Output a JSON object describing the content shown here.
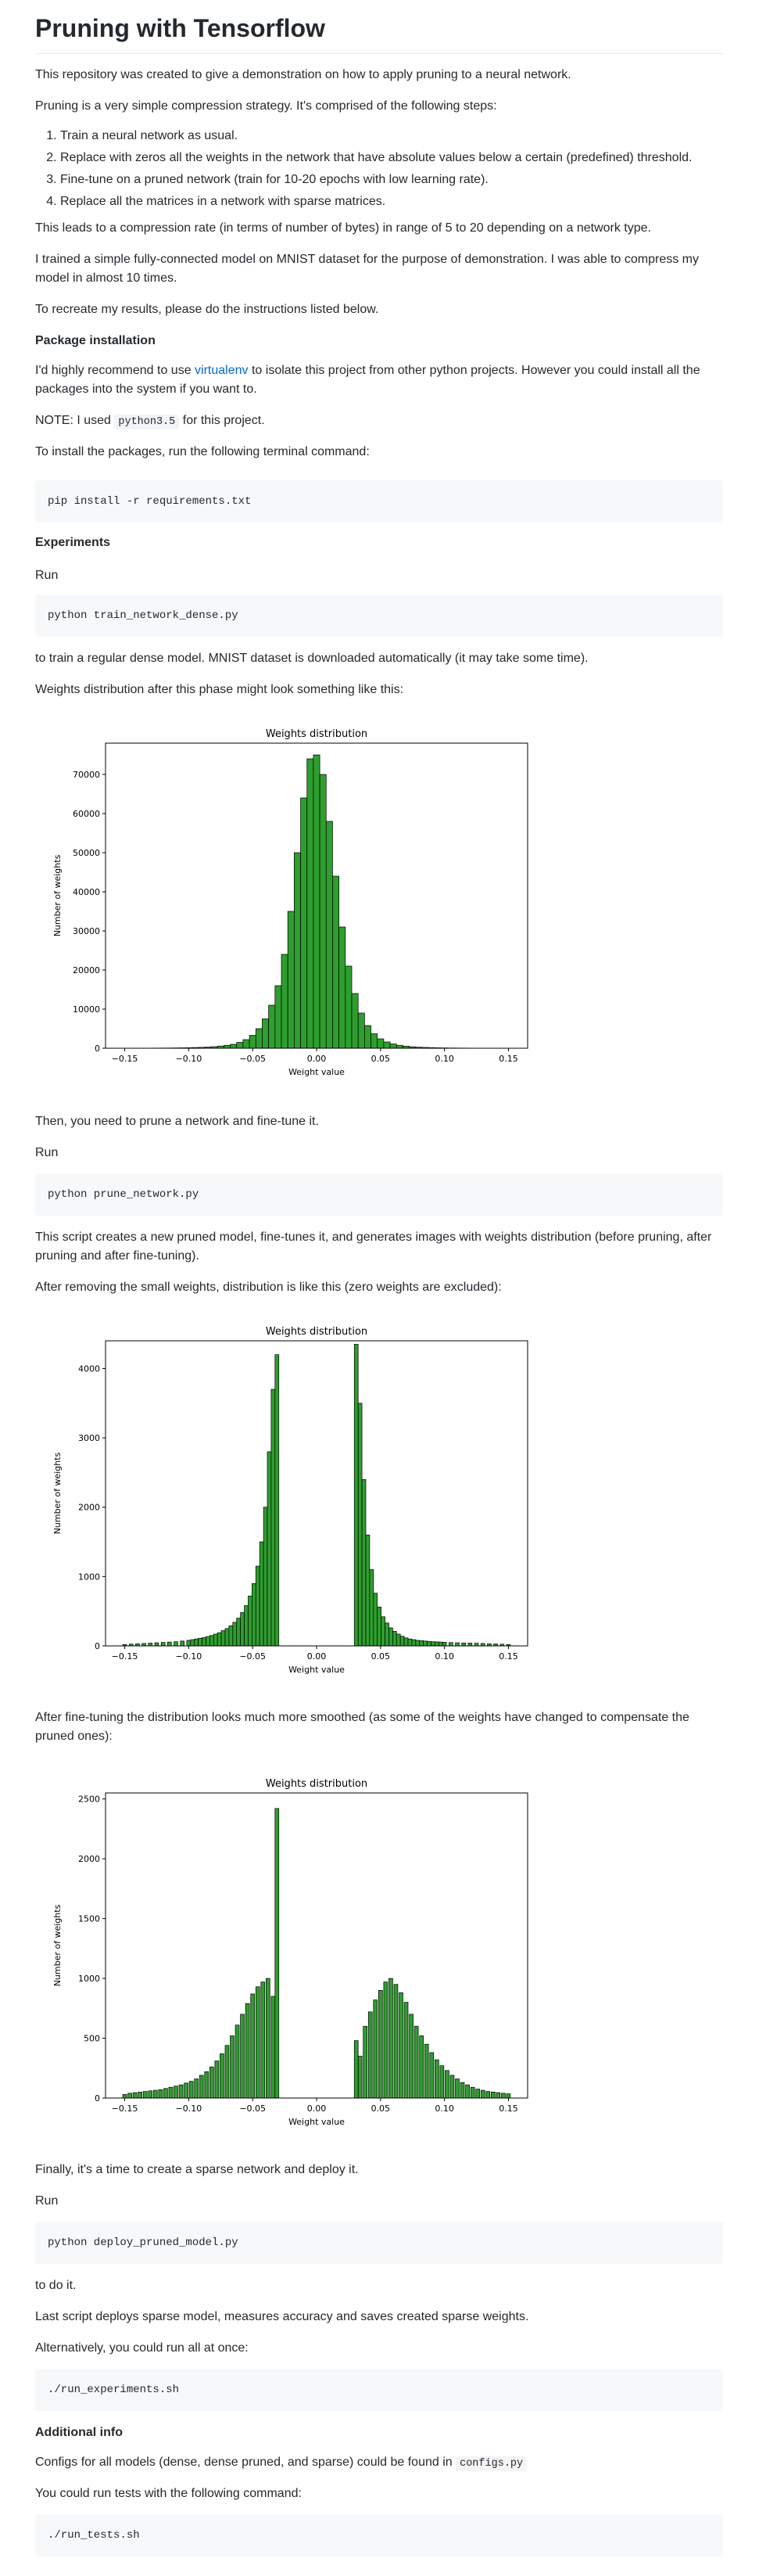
{
  "title": "Pruning with Tensorflow",
  "intro": "This repository was created to give a demonstration on how to apply pruning to a neural network.",
  "strategy": "Pruning is a very simple compression strategy. It's comprised of the following steps:",
  "steps": [
    "Train a neural network as usual.",
    "Replace with zeros all the weights in the network that have absolute values below a certain (predefined) threshold.",
    "Fine-tune on a pruned network (train for 10-20 epochs with low learning rate).",
    "Replace all the matrices in a network with sparse matrices."
  ],
  "compression": "This leads to a compression rate (in terms of number of bytes) in range of 5 to 20 depending on a network type.",
  "mnist": "I trained a simple fully-connected model on MNIST dataset for the purpose of demonstration. I was able to compress my model in almost 10 times.",
  "recreate": "To recreate my results, please do the instructions listed below.",
  "package_heading": "Package installation",
  "virtualenv": {
    "before": "I'd highly recommend to use ",
    "link": "virtualenv",
    "after": " to isolate this project from other python projects. However you could install all the packages into the system if you want to."
  },
  "note": {
    "before": "NOTE: I used ",
    "code": "python3.5",
    "after": " for this project."
  },
  "install_text": "To install the packages, run the following terminal command:",
  "install_cmd": "pip install -r requirements.txt",
  "experiments_heading": "Experiments",
  "run1": "Run",
  "train_cmd": "python train_network_dense.py",
  "train_desc": "to train a regular dense model. MNIST dataset is downloaded automatically (it may take some time).",
  "weights_desc": "Weights distribution after this phase might look something like this:",
  "then_prune": "Then, you need to prune a network and fine-tune it.",
  "run2": "Run",
  "prune_cmd": "python prune_network.py",
  "prune_desc": "This script creates a new pruned model, fine-tunes it, and generates images with weights distribution (before pruning, after pruning and after fine-tuning).",
  "after_remove": "After removing the small weights, distribution is like this (zero weights are excluded):",
  "after_finetune": "After fine-tuning the distribution looks much more smoothed (as some of the weights have changed to compensate the pruned ones):",
  "finally": "Finally, it's a time to create a sparse network and deploy it.",
  "run3": "Run",
  "deploy_cmd": "python deploy_pruned_model.py",
  "to_do_it": "to do it.",
  "last_script": "Last script deploys sparse model, measures accuracy and saves created sparse weights.",
  "alternatively": "Alternatively, you could run all at once:",
  "run_all_cmd": "./run_experiments.sh",
  "additional_heading": "Additional info",
  "configs": {
    "before": "Configs for all models (dense, dense pruned, and sparse) could be found in ",
    "code": "configs.py"
  },
  "tests_text": "You could run tests with the following command:",
  "tests_cmd": "./run_tests.sh",
  "colors": {
    "bar_fill": "#2e9e2e",
    "bar_edge": "#000000",
    "link": "#0366d6",
    "code_bg": "#f6f8fa"
  },
  "chart_data": [
    {
      "type": "bar",
      "title": "Weights distribution",
      "xlabel": "Weight value",
      "ylabel": "Number of weights",
      "xlim": [
        -0.165,
        0.165
      ],
      "ylim": [
        0,
        78000
      ],
      "x_ticks": [
        "-0.15",
        "-0.10",
        "-0.05",
        "0.00",
        "0.05",
        "0.10",
        "0.15"
      ],
      "y_ticks": [
        "0",
        "10000",
        "20000",
        "30000",
        "40000",
        "50000",
        "60000",
        "70000"
      ],
      "x": [
        -0.15,
        -0.145,
        -0.14,
        -0.135,
        -0.13,
        -0.125,
        -0.12,
        -0.115,
        -0.11,
        -0.105,
        -0.1,
        -0.095,
        -0.09,
        -0.085,
        -0.08,
        -0.075,
        -0.07,
        -0.065,
        -0.06,
        -0.055,
        -0.05,
        -0.045,
        -0.04,
        -0.035,
        -0.03,
        -0.025,
        -0.02,
        -0.015,
        -0.01,
        -0.005,
        0.0,
        0.005,
        0.01,
        0.015,
        0.02,
        0.025,
        0.03,
        0.035,
        0.04,
        0.045,
        0.05,
        0.055,
        0.06,
        0.065,
        0.07,
        0.075,
        0.08,
        0.085,
        0.09,
        0.095,
        0.1,
        0.105,
        0.11,
        0.115,
        0.12,
        0.125,
        0.13,
        0.135,
        0.14,
        0.145,
        0.15
      ],
      "values": [
        10,
        10,
        20,
        20,
        30,
        40,
        50,
        60,
        80,
        100,
        130,
        170,
        220,
        300,
        400,
        550,
        750,
        1000,
        1500,
        2200,
        3300,
        5000,
        7500,
        11000,
        16000,
        24000,
        35000,
        50000,
        64000,
        74000,
        75000,
        70000,
        58000,
        44000,
        31000,
        21000,
        14000,
        9000,
        5800,
        3700,
        2400,
        1600,
        1100,
        750,
        520,
        370,
        270,
        200,
        150,
        110,
        85,
        65,
        50,
        40,
        30,
        25,
        20,
        15,
        10,
        10,
        5
      ]
    },
    {
      "type": "bar",
      "title": "Weights distribution",
      "xlabel": "Weight value",
      "ylabel": "Number of weights",
      "xlim": [
        -0.165,
        0.165
      ],
      "ylim": [
        0,
        4400
      ],
      "x_ticks": [
        "-0.15",
        "-0.10",
        "-0.05",
        "0.00",
        "0.05",
        "0.10",
        "0.15"
      ],
      "y_ticks": [
        "0",
        "1000",
        "2000",
        "3000",
        "4000"
      ],
      "x": [
        -0.15,
        -0.145,
        -0.14,
        -0.135,
        -0.13,
        -0.125,
        -0.12,
        -0.115,
        -0.11,
        -0.105,
        -0.1,
        -0.097,
        -0.094,
        -0.091,
        -0.088,
        -0.085,
        -0.082,
        -0.079,
        -0.076,
        -0.073,
        -0.07,
        -0.067,
        -0.064,
        -0.061,
        -0.058,
        -0.055,
        -0.052,
        -0.049,
        -0.046,
        -0.043,
        -0.04,
        -0.037,
        -0.034,
        -0.031,
        0.031,
        0.034,
        0.037,
        0.04,
        0.043,
        0.046,
        0.049,
        0.052,
        0.055,
        0.058,
        0.061,
        0.064,
        0.067,
        0.07,
        0.073,
        0.076,
        0.079,
        0.082,
        0.085,
        0.088,
        0.091,
        0.094,
        0.097,
        0.1,
        0.105,
        0.11,
        0.115,
        0.12,
        0.125,
        0.13,
        0.135,
        0.14,
        0.145,
        0.15
      ],
      "values": [
        20,
        25,
        30,
        35,
        40,
        45,
        50,
        55,
        60,
        70,
        80,
        90,
        100,
        110,
        120,
        135,
        150,
        170,
        190,
        220,
        250,
        290,
        340,
        400,
        480,
        580,
        720,
        900,
        1150,
        1500,
        2000,
        2800,
        3700,
        4200,
        4350,
        3500,
        2400,
        1600,
        1100,
        760,
        560,
        420,
        330,
        260,
        210,
        170,
        140,
        115,
        100,
        90,
        80,
        75,
        70,
        65,
        60,
        58,
        55,
        52,
        48,
        45,
        42,
        40,
        38,
        35,
        30,
        28,
        24,
        20
      ]
    },
    {
      "type": "bar",
      "title": "Weights distribution",
      "xlabel": "Weight value",
      "ylabel": "Number of weights",
      "xlim": [
        -0.165,
        0.165
      ],
      "ylim": [
        0,
        2550
      ],
      "x_ticks": [
        "-0.15",
        "-0.10",
        "-0.05",
        "0.00",
        "0.05",
        "0.10",
        "0.15"
      ],
      "y_ticks": [
        "0",
        "500",
        "1000",
        "1500",
        "2000",
        "2500"
      ],
      "x": [
        -0.15,
        -0.146,
        -0.142,
        -0.138,
        -0.134,
        -0.13,
        -0.126,
        -0.122,
        -0.118,
        -0.114,
        -0.11,
        -0.106,
        -0.102,
        -0.098,
        -0.094,
        -0.09,
        -0.086,
        -0.082,
        -0.078,
        -0.074,
        -0.07,
        -0.066,
        -0.062,
        -0.058,
        -0.054,
        -0.05,
        -0.046,
        -0.042,
        -0.038,
        -0.034,
        -0.031,
        0.031,
        0.034,
        0.038,
        0.042,
        0.046,
        0.05,
        0.054,
        0.058,
        0.062,
        0.066,
        0.07,
        0.074,
        0.078,
        0.082,
        0.086,
        0.09,
        0.094,
        0.098,
        0.102,
        0.106,
        0.11,
        0.114,
        0.118,
        0.122,
        0.126,
        0.13,
        0.134,
        0.138,
        0.142,
        0.146,
        0.15
      ],
      "values": [
        30,
        40,
        45,
        50,
        55,
        60,
        65,
        70,
        80,
        90,
        100,
        110,
        125,
        140,
        160,
        190,
        220,
        260,
        310,
        370,
        440,
        520,
        610,
        700,
        790,
        870,
        930,
        970,
        1000,
        850,
        2420,
        480,
        350,
        600,
        720,
        820,
        900,
        970,
        1000,
        950,
        880,
        800,
        700,
        600,
        520,
        450,
        380,
        320,
        270,
        230,
        190,
        160,
        130,
        110,
        90,
        75,
        65,
        55,
        50,
        45,
        40,
        35
      ]
    }
  ]
}
